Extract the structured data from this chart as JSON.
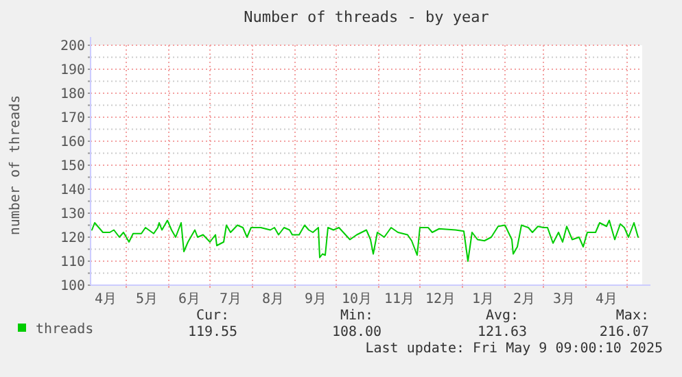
{
  "chart_data": {
    "type": "line",
    "title": "Number of threads - by year",
    "ylabel": "number of threads",
    "x": [
      "2024-04-06",
      "2024-04-08",
      "2024-04-11",
      "2024-04-14",
      "2024-04-19",
      "2024-04-22",
      "2024-04-26",
      "2024-04-29",
      "2024-05-03",
      "2024-05-06",
      "2024-05-12",
      "2024-05-15",
      "2024-05-21",
      "2024-05-24",
      "2024-05-25",
      "2024-05-27",
      "2024-05-31",
      "2024-06-03",
      "2024-06-06",
      "2024-06-10",
      "2024-06-12",
      "2024-06-15",
      "2024-06-20",
      "2024-06-22",
      "2024-06-26",
      "2024-07-01",
      "2024-07-05",
      "2024-07-06",
      "2024-07-11",
      "2024-07-13",
      "2024-07-16",
      "2024-07-21",
      "2024-07-25",
      "2024-07-28",
      "2024-07-31",
      "2024-08-07",
      "2024-08-14",
      "2024-08-17",
      "2024-08-20",
      "2024-08-24",
      "2024-08-28",
      "2024-08-30",
      "2024-09-04",
      "2024-09-08",
      "2024-09-11",
      "2024-09-14",
      "2024-09-18",
      "2024-09-19",
      "2024-09-21",
      "2024-09-23",
      "2024-09-25",
      "2024-09-29",
      "2024-10-03",
      "2024-10-11",
      "2024-10-16",
      "2024-10-23",
      "2024-10-26",
      "2024-10-28",
      "2024-10-31",
      "2024-11-05",
      "2024-11-10",
      "2024-11-15",
      "2024-11-22",
      "2024-11-25",
      "2024-11-29",
      "2024-12-01",
      "2024-12-07",
      "2024-12-10",
      "2024-12-15",
      "2024-12-27",
      "2025-01-02",
      "2025-01-05",
      "2025-01-08",
      "2025-01-12",
      "2025-01-17",
      "2025-01-22",
      "2025-01-27",
      "2025-02-01",
      "2025-02-06",
      "2025-02-07",
      "2025-02-10",
      "2025-02-13",
      "2025-02-18",
      "2025-02-21",
      "2025-02-25",
      "2025-03-01",
      "2025-03-04",
      "2025-03-08",
      "2025-03-12",
      "2025-03-15",
      "2025-03-18",
      "2025-03-22",
      "2025-03-27",
      "2025-03-30",
      "2025-04-02",
      "2025-04-08",
      "2025-04-11",
      "2025-04-16",
      "2025-04-18",
      "2025-04-22",
      "2025-04-26",
      "2025-04-29",
      "2025-05-02",
      "2025-05-06",
      "2025-05-09"
    ],
    "series": [
      {
        "name": "threads",
        "color": "#00cc00",
        "values": [
          123,
          126,
          124,
          122,
          122,
          123,
          120,
          122,
          118,
          121.5,
          121.5,
          124,
          121.5,
          124,
          126,
          123,
          127,
          123,
          120,
          126,
          114,
          118,
          123,
          120,
          121,
          118,
          121,
          116.5,
          118,
          125,
          122,
          125,
          124,
          120,
          124,
          124,
          123,
          124,
          121,
          124,
          123,
          121,
          121,
          125,
          123,
          122,
          124,
          111.5,
          113,
          112.5,
          124,
          123,
          124,
          119,
          121,
          123,
          119,
          113,
          122,
          120,
          124,
          122,
          121,
          118.5,
          112.5,
          124,
          124,
          122,
          123.5,
          123,
          122.5,
          110,
          122,
          119,
          118.5,
          120,
          124.5,
          125,
          119,
          113,
          116,
          125,
          124,
          122,
          124.5,
          124,
          124,
          117.5,
          122,
          118,
          124.5,
          119,
          120,
          116,
          122,
          122,
          126,
          124.5,
          127,
          119,
          125.5,
          124,
          120,
          126,
          120
        ]
      }
    ],
    "xlim": [
      "2024-04-05",
      "2025-05-12"
    ],
    "xticks": [
      {
        "value": "2024-04-16",
        "label": "4月"
      },
      {
        "value": "2024-05-01",
        "label": null
      },
      {
        "value": "2024-05-16",
        "label": "5月"
      },
      {
        "value": "2024-06-01",
        "label": null
      },
      {
        "value": "2024-06-16",
        "label": "6月"
      },
      {
        "value": "2024-07-01",
        "label": null
      },
      {
        "value": "2024-07-16",
        "label": "7月"
      },
      {
        "value": "2024-08-01",
        "label": null
      },
      {
        "value": "2024-08-16",
        "label": "8月"
      },
      {
        "value": "2024-09-01",
        "label": null
      },
      {
        "value": "2024-09-16",
        "label": "9月"
      },
      {
        "value": "2024-10-01",
        "label": null
      },
      {
        "value": "2024-10-16",
        "label": "10月"
      },
      {
        "value": "2024-11-01",
        "label": null
      },
      {
        "value": "2024-11-16",
        "label": "11月"
      },
      {
        "value": "2024-12-01",
        "label": null
      },
      {
        "value": "2024-12-16",
        "label": "12月"
      },
      {
        "value": "2025-01-01",
        "label": null
      },
      {
        "value": "2025-01-16",
        "label": "1月"
      },
      {
        "value": "2025-02-01",
        "label": null
      },
      {
        "value": "2025-02-15",
        "label": "2月"
      },
      {
        "value": "2025-03-01",
        "label": null
      },
      {
        "value": "2025-03-16",
        "label": "3月"
      },
      {
        "value": "2025-04-01",
        "label": null
      },
      {
        "value": "2025-04-16",
        "label": "4月"
      },
      {
        "value": "2025-05-01",
        "label": null
      }
    ],
    "ylim": [
      100,
      200
    ],
    "yticks": [
      100,
      {
        "value": 105,
        "label": null
      },
      110,
      {
        "value": 115,
        "label": null
      },
      120,
      {
        "value": 125,
        "label": null
      },
      130,
      {
        "value": 135,
        "label": null
      },
      140,
      {
        "value": 145,
        "label": null
      },
      150,
      {
        "value": 155,
        "label": null
      },
      160,
      {
        "value": 165,
        "label": null
      },
      170,
      {
        "value": 175,
        "label": null
      },
      180,
      {
        "value": 185,
        "label": null
      },
      190,
      {
        "value": 195,
        "label": null
      },
      200
    ],
    "grid": true,
    "legend": "bottom left",
    "annotations": [
      "Cur:",
      "Min:",
      "Avg:",
      "Max:",
      "119.55",
      "108.00",
      "121.63",
      "216.07",
      "Last update: Fri May  9 09:00:10 2025"
    ]
  }
}
